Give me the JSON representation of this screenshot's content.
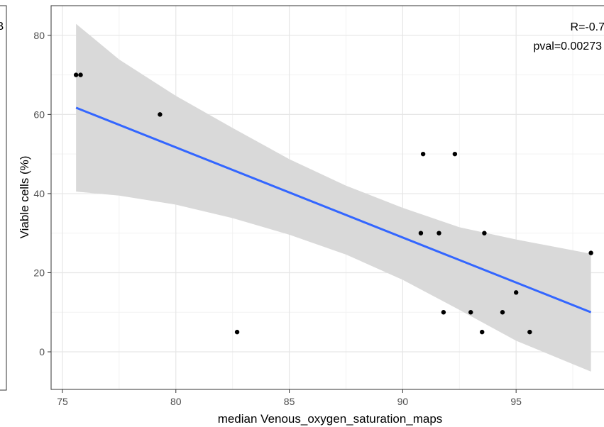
{
  "chart_data": {
    "type": "scatter",
    "title": "",
    "xlabel": "median Venous_oxygen_saturation_maps",
    "ylabel": "Viable cells (%)",
    "xlim": [
      74.5,
      99.0
    ],
    "ylim": [
      -9.5,
      87.5
    ],
    "x_ticks": [
      75,
      80,
      85,
      90,
      95
    ],
    "y_ticks": [
      0,
      20,
      40,
      60,
      80
    ],
    "x_tick_labels": [
      "75",
      "80",
      "85",
      "90",
      "95"
    ],
    "y_tick_labels": [
      "0",
      "20",
      "40",
      "60",
      "80"
    ],
    "grid": true,
    "points": [
      {
        "x": 75.6,
        "y": 70
      },
      {
        "x": 75.8,
        "y": 70
      },
      {
        "x": 79.3,
        "y": 60
      },
      {
        "x": 82.7,
        "y": 5
      },
      {
        "x": 90.8,
        "y": 30
      },
      {
        "x": 90.9,
        "y": 50
      },
      {
        "x": 91.6,
        "y": 30
      },
      {
        "x": 91.8,
        "y": 10
      },
      {
        "x": 92.3,
        "y": 50
      },
      {
        "x": 93.0,
        "y": 10
      },
      {
        "x": 93.5,
        "y": 5
      },
      {
        "x": 93.6,
        "y": 30
      },
      {
        "x": 94.4,
        "y": 10
      },
      {
        "x": 95.0,
        "y": 15
      },
      {
        "x": 95.6,
        "y": 5
      },
      {
        "x": 98.3,
        "y": 25
      }
    ],
    "fit": {
      "x": [
        75.6,
        98.3
      ],
      "y": [
        61.7,
        10.0
      ],
      "color": "#3366ff"
    },
    "confidence_band": {
      "x": [
        75.6,
        77.5,
        80,
        82.5,
        85,
        87.5,
        90,
        92.5,
        95,
        98.3
      ],
      "upper": [
        82.9,
        73.9,
        64.7,
        56.6,
        48.7,
        42.0,
        36.4,
        31.5,
        28.4,
        24.8
      ],
      "lower": [
        40.5,
        39.5,
        37.2,
        33.8,
        29.6,
        24.6,
        18.2,
        10.6,
        2.8,
        -5.0
      ],
      "color": "#d9d9d9"
    },
    "annotations": {
      "r": "R=-0.7",
      "pval": "pval=0.00273"
    },
    "left_panel_letter": "B"
  }
}
